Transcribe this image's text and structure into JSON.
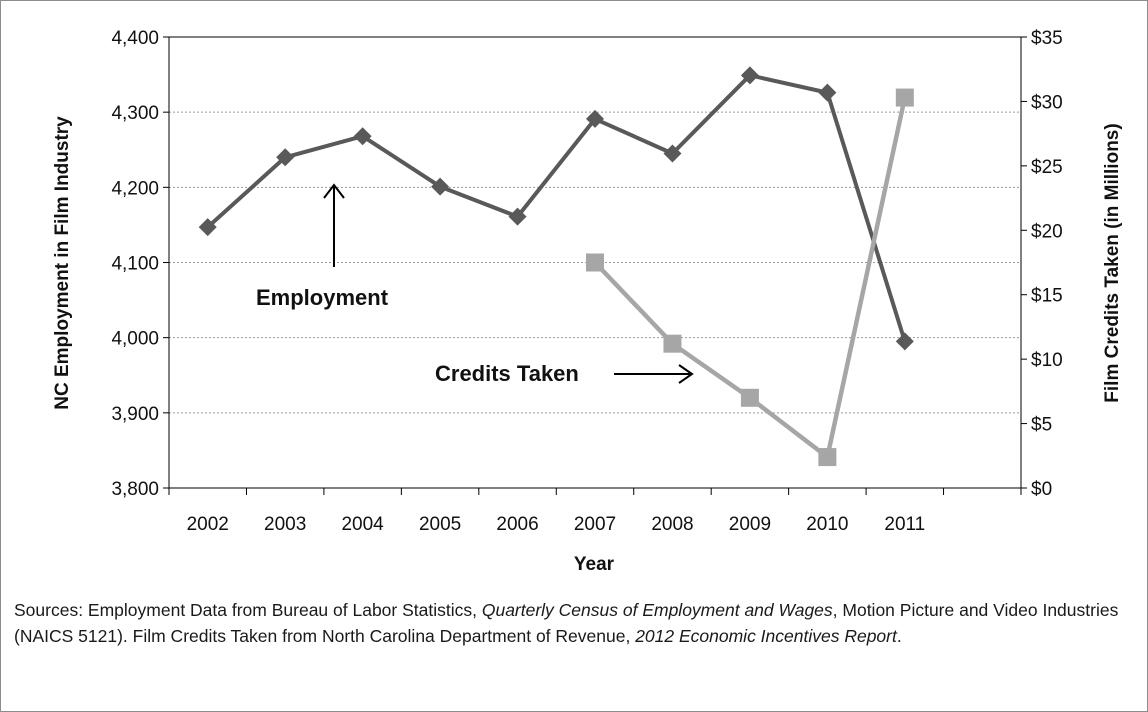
{
  "chart_data": {
    "type": "line",
    "categories": [
      "2002",
      "2003",
      "2004",
      "2005",
      "2006",
      "2007",
      "2008",
      "2009",
      "2010",
      "2011"
    ],
    "xlabel": "Year",
    "ylabel": "NC Employment in Film Industry",
    "y2label": "Film Credits Taken (in Millions)",
    "ylim": [
      3800,
      4400
    ],
    "y2lim": [
      0,
      35
    ],
    "y_ticks": [
      "3,800",
      "3,900",
      "4,000",
      "4,100",
      "4,200",
      "4,300",
      "4,400"
    ],
    "y2_ticks": [
      "$0",
      "$5",
      "$10",
      "$15",
      "$20",
      "$25",
      "$30",
      "$35"
    ],
    "grid": "horizontal dotted",
    "series": [
      {
        "name": "Employment",
        "axis": "left",
        "marker": "diamond",
        "color": "#595959",
        "values": [
          4147,
          4240,
          4268,
          4201,
          4161,
          4291,
          4245,
          4349,
          4326,
          3995
        ]
      },
      {
        "name": "Credits Taken",
        "axis": "right",
        "marker": "square",
        "color": "#a6a6a6",
        "values": [
          null,
          null,
          null,
          null,
          null,
          17.5,
          11.2,
          7.0,
          2.4,
          30.3
        ]
      }
    ],
    "annotations": [
      {
        "text": "Employment",
        "arrow": "up"
      },
      {
        "text": "Credits Taken",
        "arrow": "right"
      }
    ]
  },
  "sources": {
    "lead": "Sources: Employment Data from Bureau of Labor Statistics, ",
    "pub1": "Quarterly Census of Employment and Wages",
    "mid": ", Motion Picture and Video Industries (NAICS 5121). Film Credits Taken from North Carolina Department of Revenue, ",
    "pub2": "2012 Economic Incentives Report",
    "end": "."
  }
}
